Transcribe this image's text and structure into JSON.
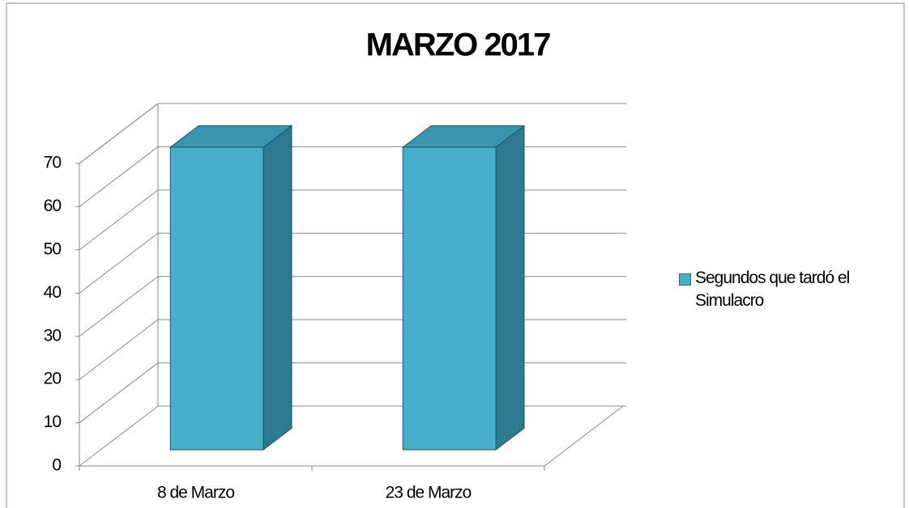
{
  "chart_data": {
    "type": "bar3d",
    "title": "MARZO 2017",
    "categories": [
      "8 de Marzo",
      "23 de Marzo"
    ],
    "series": [
      {
        "name": "Segundos que tardó el Simulacro",
        "color": "#47afcb",
        "values": [
          70,
          70
        ]
      }
    ],
    "ylim": [
      0,
      70
    ],
    "yticks": [
      0,
      10,
      20,
      30,
      40,
      50,
      60,
      70
    ],
    "grid": true,
    "legend": "right"
  }
}
